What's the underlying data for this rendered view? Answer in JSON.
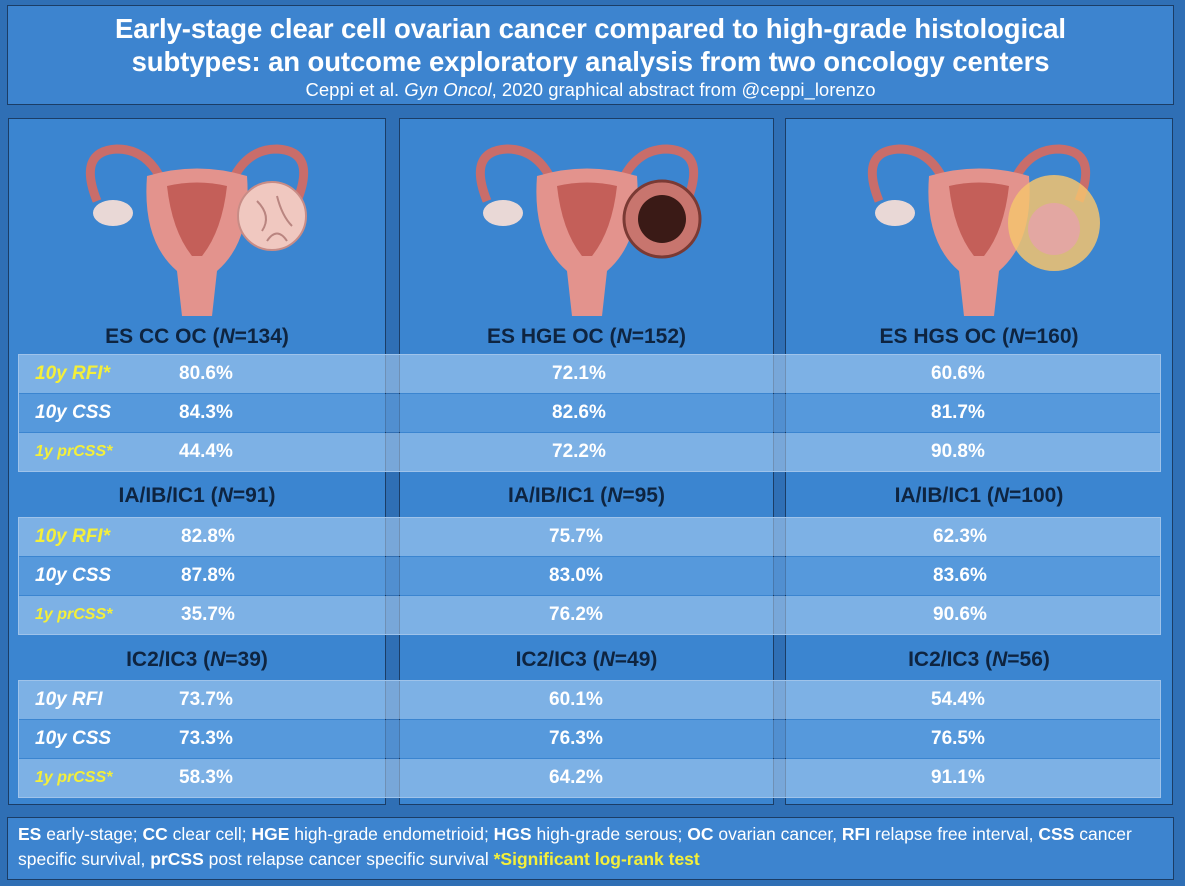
{
  "header": {
    "title_line1": "Early-stage clear cell ovarian cancer compared to high-grade histological",
    "title_line2": "subtypes: an outcome exploratory analysis from two oncology centers",
    "subtitle_pre": "Ceppi et al. ",
    "subtitle_journal": "Gyn Oncol",
    "subtitle_post": ", 2020 graphical abstract from @ceppi_lorenzo"
  },
  "columns": [
    {
      "name": "ES CC OC",
      "illustration": "uterus-clear-cell-tumor-icon"
    },
    {
      "name": "ES HGE OC",
      "illustration": "uterus-endometrioid-tumor-icon"
    },
    {
      "name": "ES HGS OC",
      "illustration": "uterus-serous-tumor-icon"
    }
  ],
  "groups": [
    {
      "titles": [
        {
          "pre": "ES CC OC (",
          "n": "N",
          "post": "=134)"
        },
        {
          "pre": "ES HGE OC (",
          "n": "N",
          "post": "=152)"
        },
        {
          "pre": "ES HGS OC (",
          "n": "N",
          "post": "=160)"
        }
      ],
      "rows": [
        {
          "label": "10y RFI*",
          "values": [
            "80.6%",
            "72.1%",
            "60.6%"
          ]
        },
        {
          "label": "10y CSS",
          "values": [
            "84.3%",
            "82.6%",
            "81.7%"
          ]
        },
        {
          "label": "1y prCSS*",
          "values": [
            "44.4%",
            "72.2%",
            "90.8%"
          ]
        }
      ]
    },
    {
      "titles": [
        {
          "pre": "IA/IB/IC1 (",
          "n": "N",
          "post": "=91)"
        },
        {
          "pre": "IA/IB/IC1 (",
          "n": "N",
          "post": "=95)"
        },
        {
          "pre": "IA/IB/IC1 (",
          "n": "N",
          "post": "=100)"
        }
      ],
      "rows": [
        {
          "label": "10y RFI*",
          "values": [
            "82.8%",
            "75.7%",
            "62.3%"
          ]
        },
        {
          "label": "10y CSS",
          "values": [
            "87.8%",
            "83.0%",
            "83.6%"
          ]
        },
        {
          "label": "1y prCSS*",
          "values": [
            "35.7%",
            "76.2%",
            "90.6%"
          ]
        }
      ]
    },
    {
      "titles": [
        {
          "pre": "IC2/IC3 (",
          "n": "N",
          "post": "=39)"
        },
        {
          "pre": "IC2/IC3 (",
          "n": "N",
          "post": "=49)"
        },
        {
          "pre": "IC2/IC3 (",
          "n": "N",
          "post": "=56)"
        }
      ],
      "rows": [
        {
          "label": "10y RFI",
          "values": [
            "73.7%",
            "60.1%",
            "54.4%"
          ]
        },
        {
          "label": "10y CSS",
          "values": [
            "73.3%",
            "76.3%",
            "76.5%"
          ]
        },
        {
          "label": "1y prCSS*",
          "values": [
            "58.3%",
            "64.2%",
            "91.1%"
          ]
        }
      ]
    }
  ],
  "footer": {
    "es_abbr": "ES",
    "es_text": " early-stage; ",
    "cc_abbr": "CC",
    "cc_text": " clear cell; ",
    "hge_abbr": "HGE",
    "hge_text": " high-grade endometrioid; ",
    "hgs_abbr": "HGS",
    "hgs_text": " high-grade serous; ",
    "oc_abbr": "OC",
    "oc_text": " ovarian cancer, ",
    "rfi_abbr": "RFI",
    "rfi_text": " relapse free interval, ",
    "css_abbr": "CSS",
    "css_text": " cancer specific survival, ",
    "prcss_abbr": "prCSS",
    "prcss_text": " post relapse cancer specific survival ",
    "significant": "*Significant log-rank test"
  },
  "colors": {
    "background": "#2f6fb5",
    "panel": "#3b85d0",
    "highlight": "#f4ef3a",
    "title_text": "#0e2440"
  }
}
